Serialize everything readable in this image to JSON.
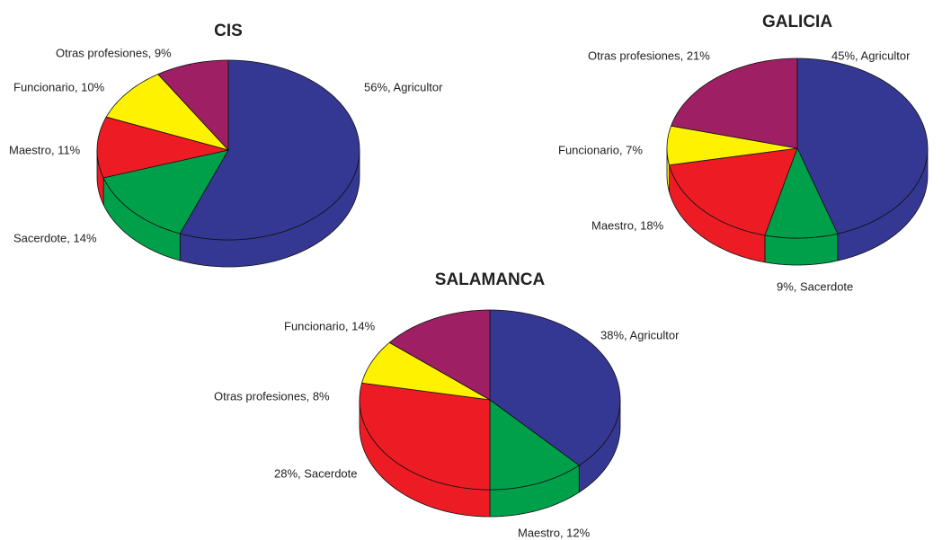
{
  "chart_data": [
    {
      "type": "pie",
      "title": "CIS",
      "values": [
        56,
        14,
        11,
        10,
        9
      ],
      "value_labels": [
        "56%, Agricultor",
        "Sacerdote, 14%",
        "Maestro, 11%",
        "Funcionario, 10%",
        "Otras profesiones, 9%"
      ],
      "colors": [
        "#353893",
        "#00a04b",
        "#ed1c24",
        "#fff200",
        "#9e1f63"
      ]
    },
    {
      "type": "pie",
      "title": "GALICIA",
      "values": [
        45,
        9,
        18,
        7,
        21
      ],
      "value_labels": [
        "45%, Agricultor",
        "9%, Sacerdote",
        "Maestro, 18%",
        "Funcionario, 7%",
        "Otras profesiones, 21%"
      ],
      "colors": [
        "#353893",
        "#00a04b",
        "#ed1c24",
        "#fff200",
        "#9e1f63"
      ]
    },
    {
      "type": "pie",
      "title": "SALAMANCA",
      "values": [
        38,
        12,
        28,
        8,
        14
      ],
      "value_labels": [
        "38%, Agricultor",
        "Maestro, 12%",
        "28%, Sacerdote",
        "Otras profesiones, 8%",
        "Funcionario, 14%"
      ],
      "colors": [
        "#353893",
        "#00a04b",
        "#ed1c24",
        "#fff200",
        "#9e1f63"
      ]
    }
  ]
}
